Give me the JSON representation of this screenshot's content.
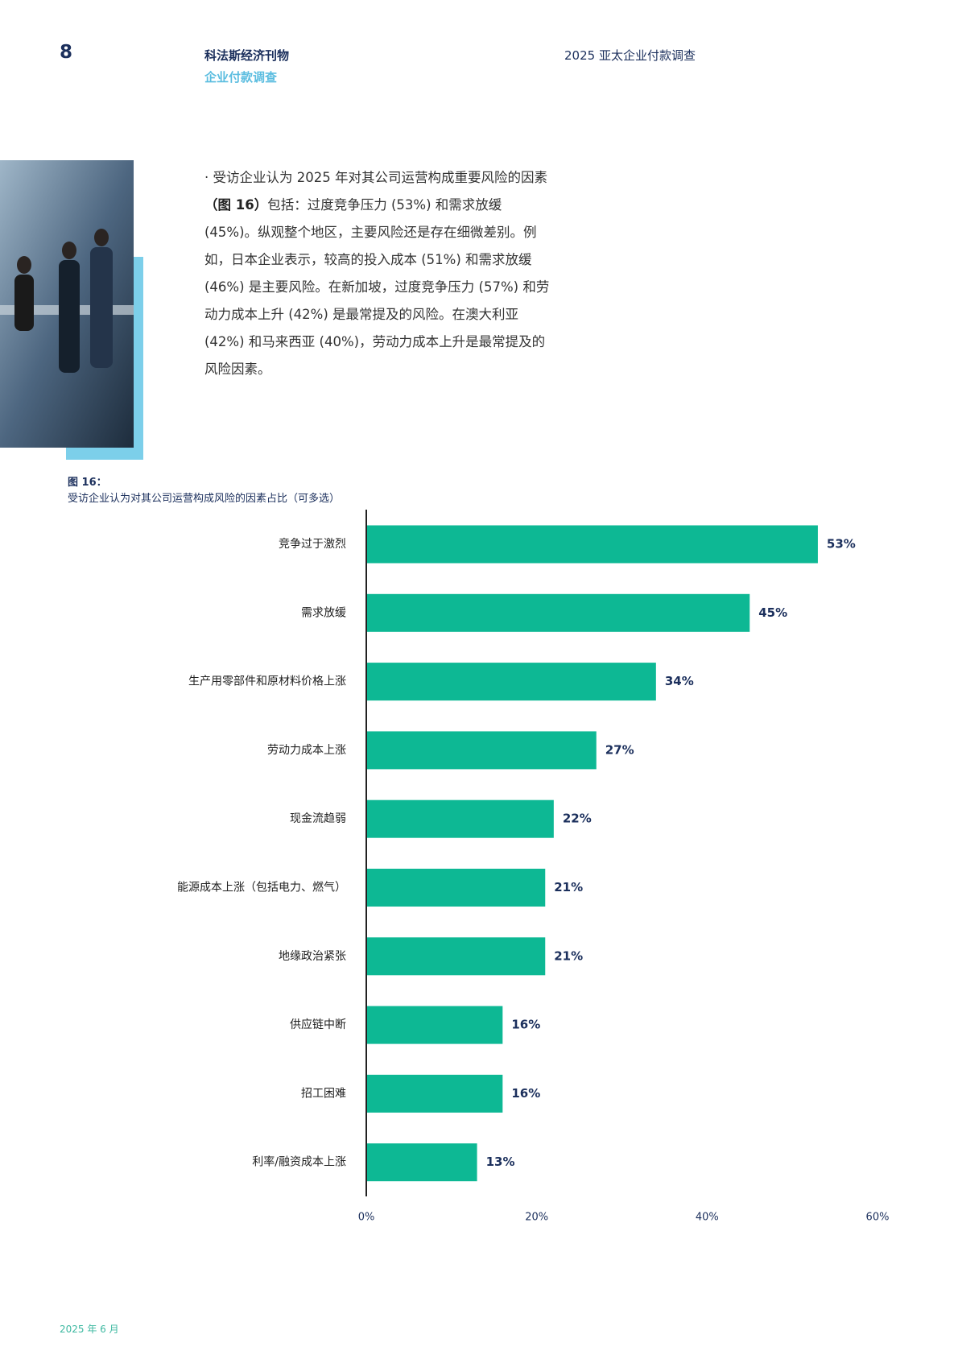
{
  "header": {
    "page_number": "8",
    "publication": "科法斯经济刊物",
    "section": "企业付款调查",
    "report_title": "2025 亚太企业付款调查"
  },
  "body": {
    "bullet": "·",
    "text_1": "受访企业认为 2025 年对其公司运营构成重要风险的因素",
    "text_bold": "（图 16）",
    "text_2": "包括：过度竞争压力 (53%) 和需求放缓 (45%)。纵观整个地区，主要风险还是存在细微差别。例如，日本企业表示，较高的投入成本 (51%) 和需求放缓 (46%) 是主要风险。在新加坡，过度竞争压力 (57%) 和劳动力成本上升 (42%) 是最常提及的风险。在澳大利亚 (42%) 和马来西亚 (40%)，劳动力成本上升是最常提及的风险因素。"
  },
  "chart_data": {
    "type": "barh",
    "title": "图 16：",
    "subtitle": "受访企业认为对其公司运营构成风险的因素占比（可多选）",
    "categories": [
      "竞争过于激烈",
      "需求放缓",
      "生产用零部件和原材料价格上涨",
      "劳动力成本上涨",
      "现金流趋弱",
      "能源成本上涨（包括电力、燃气）",
      "地缘政治紧张",
      "供应链中断",
      "招工困难",
      "利率/融资成本上涨"
    ],
    "values": [
      53,
      45,
      34,
      27,
      22,
      21,
      21,
      16,
      16,
      13
    ],
    "value_labels": [
      "53%",
      "45%",
      "34%",
      "27%",
      "22%",
      "21%",
      "21%",
      "16%",
      "16%",
      "13%"
    ],
    "color": "#0db894",
    "xlim": [
      0,
      60
    ],
    "xticks": [
      {
        "value": 0,
        "label": "0%"
      },
      {
        "value": 20,
        "label": "20%"
      },
      {
        "value": 40,
        "label": "40%"
      },
      {
        "value": 60,
        "label": "60%"
      }
    ],
    "grid": false
  },
  "footer": {
    "date": "2025 年 6 月"
  }
}
